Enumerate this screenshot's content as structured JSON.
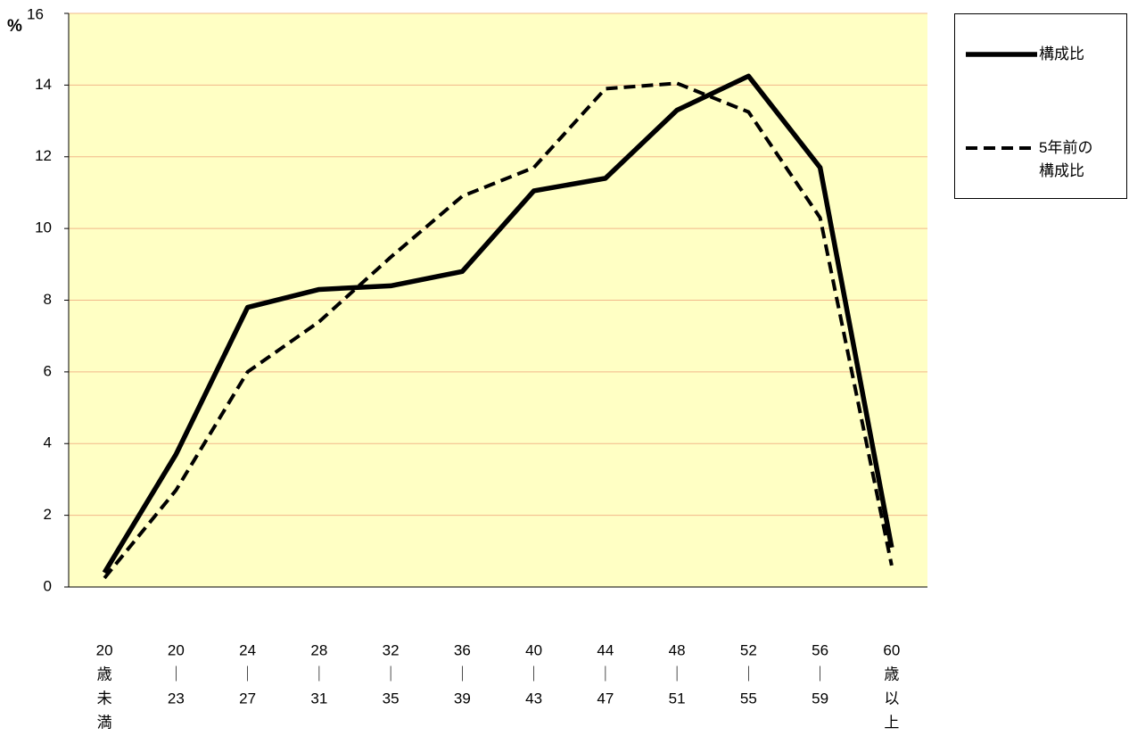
{
  "chart_data": {
    "type": "line",
    "y_label": "%",
    "categories": [
      [
        "20",
        "歳",
        "未",
        "満"
      ],
      [
        "20",
        "｜",
        "23"
      ],
      [
        "24",
        "｜",
        "27"
      ],
      [
        "28",
        "｜",
        "31"
      ],
      [
        "32",
        "｜",
        "35"
      ],
      [
        "36",
        "｜",
        "39"
      ],
      [
        "40",
        "｜",
        "43"
      ],
      [
        "44",
        "｜",
        "47"
      ],
      [
        "48",
        "｜",
        "51"
      ],
      [
        "52",
        "｜",
        "55"
      ],
      [
        "56",
        "｜",
        "59"
      ],
      [
        "60",
        "歳",
        "以",
        "上"
      ]
    ],
    "series": [
      {
        "name": "構成比",
        "color": "#000000",
        "dash": false,
        "values": [
          0.4,
          3.7,
          7.8,
          8.3,
          8.4,
          8.8,
          11.05,
          11.4,
          13.3,
          14.25,
          11.7,
          1.1
        ]
      },
      {
        "name": "5年前の構成比",
        "color": "#000000",
        "dash": true,
        "values": [
          0.25,
          2.7,
          6.0,
          7.4,
          9.2,
          10.9,
          11.7,
          13.9,
          14.05,
          13.25,
          10.3,
          0.6
        ]
      }
    ],
    "ylim": [
      0,
      16
    ],
    "yticks": [
      0,
      2,
      4,
      6,
      8,
      10,
      12,
      14,
      16
    ],
    "grid": true,
    "plot_color": "#ffffc4",
    "grid_color": "#f2b88a"
  }
}
